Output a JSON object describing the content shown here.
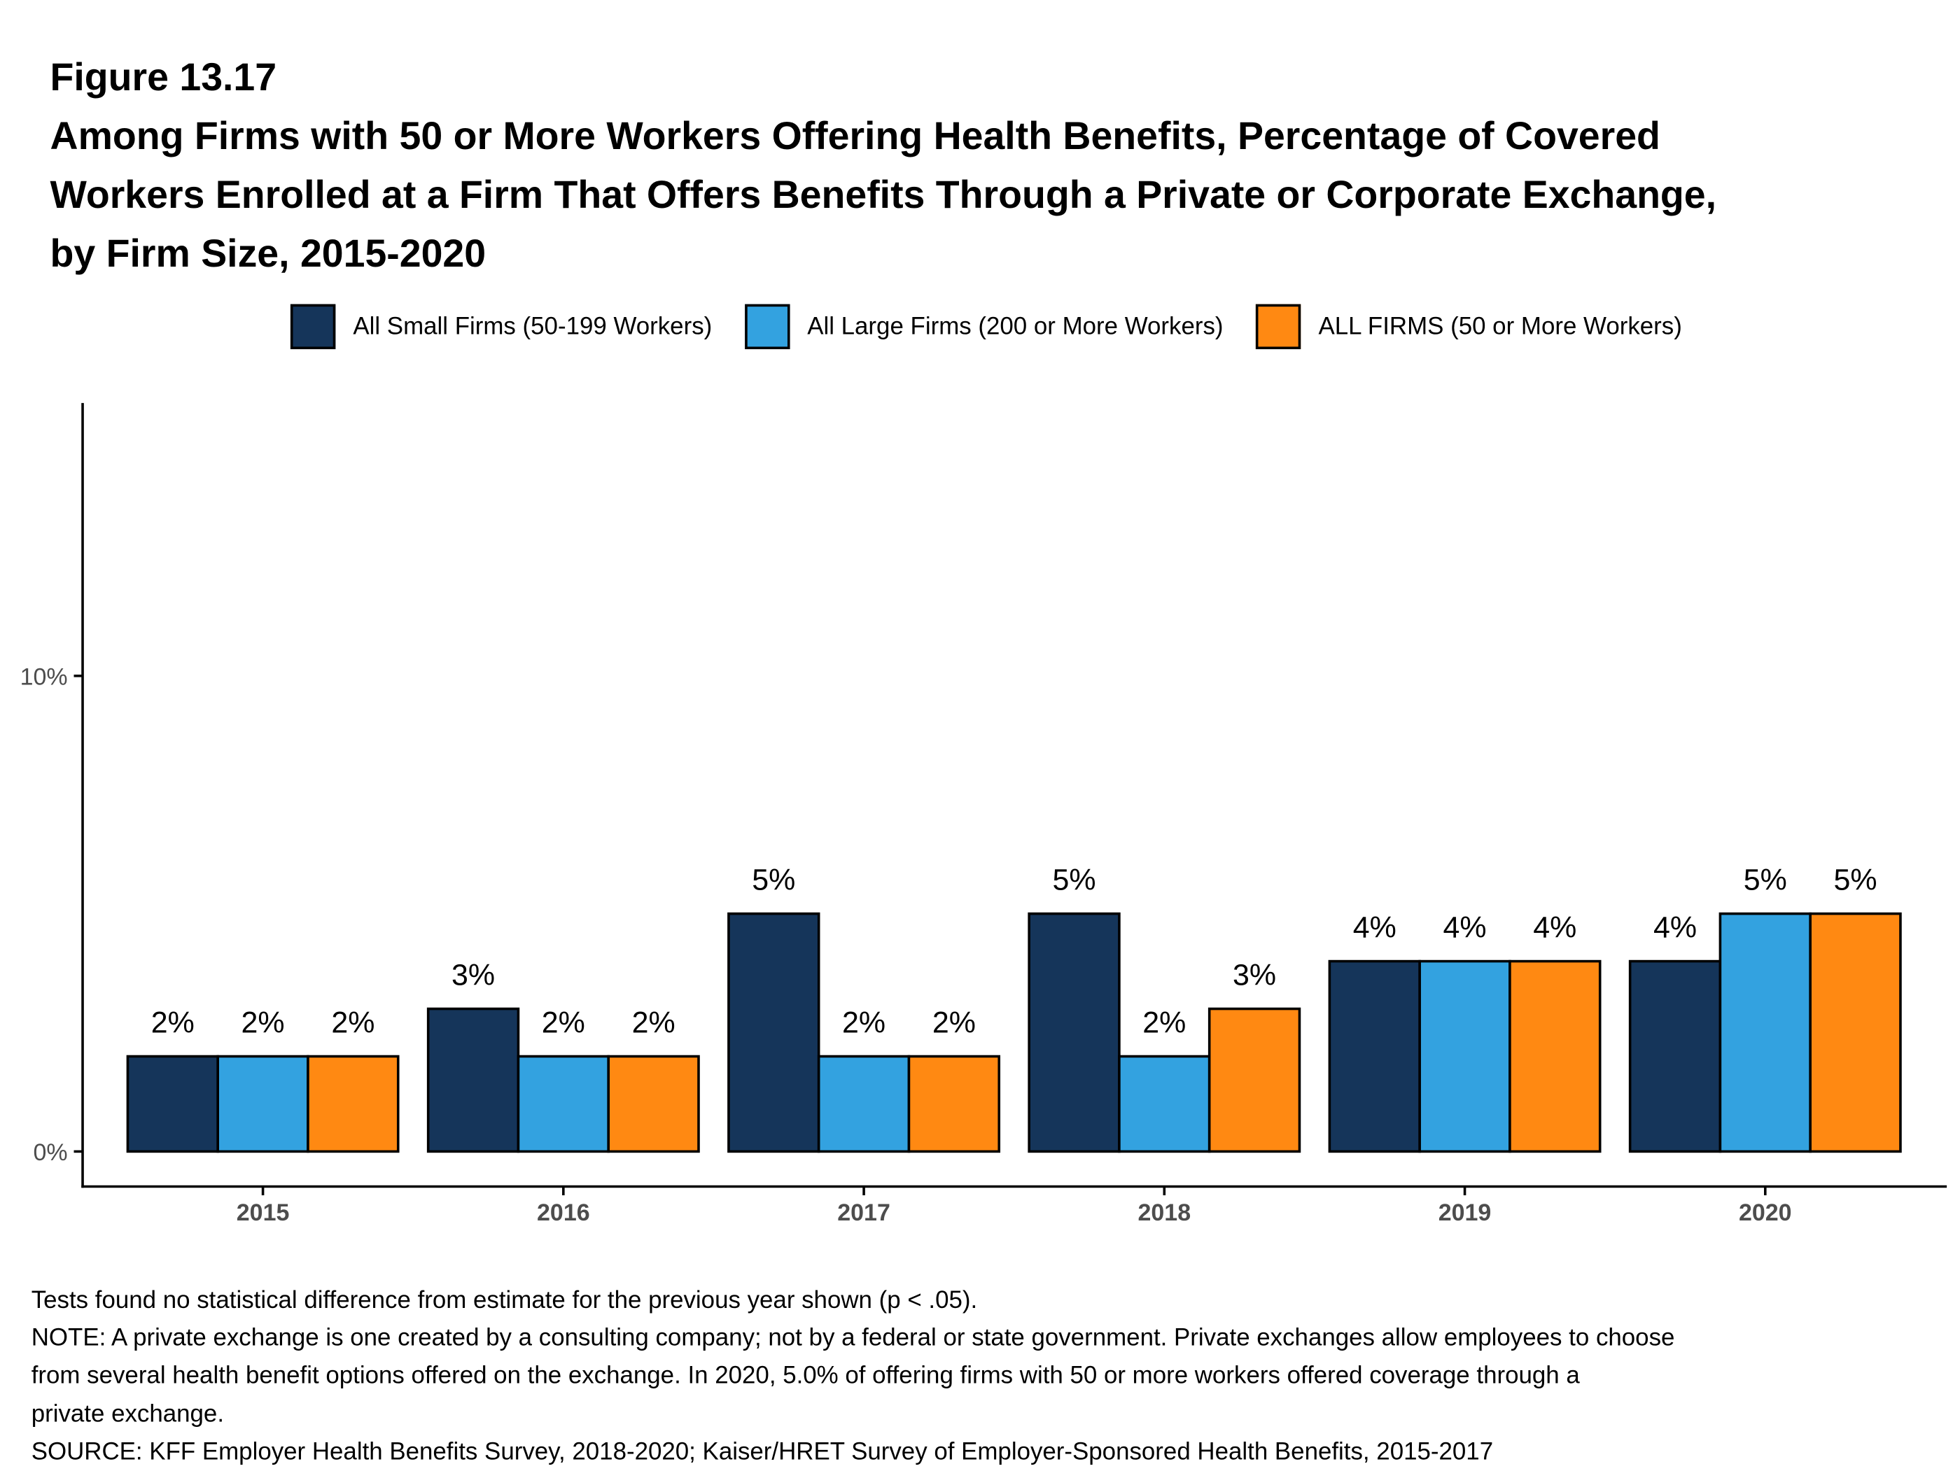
{
  "figure_label": "Figure 13.17",
  "title_lines": [
    "Among Firms with 50 or More Workers Offering Health Benefits, Percentage of Covered",
    "Workers Enrolled at a Firm That Offers Benefits Through a Private or Corporate Exchange,",
    "by Firm Size, 2015-2020"
  ],
  "chart_data": {
    "type": "bar",
    "title": "Among Firms with 50 or More Workers Offering Health Benefits, Percentage of Covered Workers Enrolled at a Firm That Offers Benefits Through a Private or Corporate Exchange, by Firm Size, 2015-2020",
    "xlabel": "",
    "ylabel": "",
    "categories": [
      "2015",
      "2016",
      "2017",
      "2018",
      "2019",
      "2020"
    ],
    "series": [
      {
        "name": "All Small Firms (50-199 Workers)",
        "color": "#15355A",
        "values": [
          2,
          3,
          5,
          5,
          4,
          4
        ],
        "labels": [
          "2%",
          "3%",
          "5%",
          "5%",
          "4%",
          "4%"
        ]
      },
      {
        "name": "All Large Firms (200 or More Workers)",
        "color": "#33A2E0",
        "values": [
          2,
          2,
          2,
          2,
          4,
          5
        ],
        "labels": [
          "2%",
          "2%",
          "2%",
          "2%",
          "4%",
          "5%"
        ]
      },
      {
        "name": "ALL FIRMS (50 or More Workers)",
        "color": "#FF8912",
        "values": [
          2,
          2,
          2,
          3,
          4,
          5
        ],
        "labels": [
          "2%",
          "2%",
          "2%",
          "3%",
          "4%",
          "5%"
        ]
      }
    ],
    "ylim": [
      0,
      15
    ],
    "yticks": [
      0,
      10
    ],
    "ytick_labels": [
      "0%",
      "10%"
    ],
    "grid": false,
    "legend_position": "top"
  },
  "footnotes": [
    "Tests found no statistical difference from estimate for the previous year shown (p < .05).",
    "NOTE: A private exchange is one created by a consulting company; not by a federal or state government. Private exchanges allow employees to choose",
    "from several health benefit options offered on the exchange. In 2020, 5.0% of offering firms with 50 or more workers offered coverage through a",
    "private exchange.",
    "SOURCE: KFF Employer Health Benefits Survey, 2018-2020; Kaiser/HRET Survey of Employer-Sponsored Health Benefits, 2015-2017"
  ]
}
